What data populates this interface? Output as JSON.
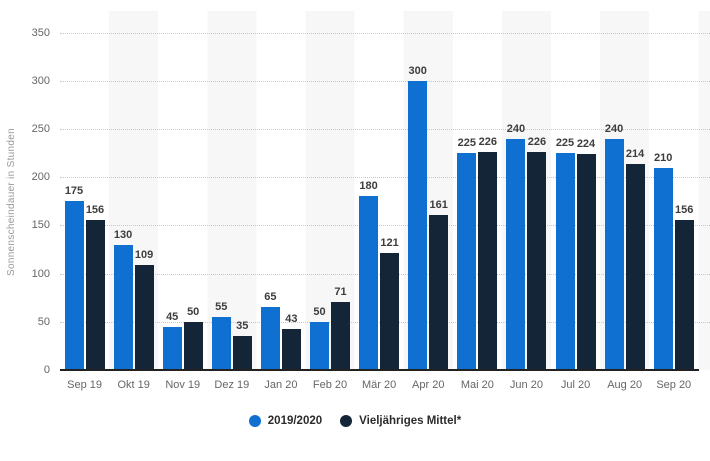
{
  "chart_data": {
    "type": "bar",
    "title": "",
    "xlabel": "",
    "ylabel": "Sonnenscheindauer in Stunden",
    "ylim": [
      0,
      350
    ],
    "yticks": [
      0,
      50,
      100,
      150,
      200,
      250,
      300,
      350
    ],
    "grid": "horizontal-dotted",
    "legend_position": "bottom-center",
    "categories": [
      "Sep 19",
      "Okt 19",
      "Nov 19",
      "Dez 19",
      "Jan 20",
      "Feb 20",
      "Mär 20",
      "Apr 20",
      "Mai 20",
      "Jun 20",
      "Jul 20",
      "Aug 20",
      "Sep 20"
    ],
    "series": [
      {
        "name": "2019/2020",
        "color": "#1070d2",
        "values": [
          175,
          130,
          45,
          55,
          65,
          50,
          180,
          300,
          225,
          240,
          225,
          240,
          210
        ]
      },
      {
        "name": "Vieljähriges Mittel*",
        "color": "#142538",
        "values": [
          156,
          109,
          50,
          35,
          43,
          71,
          121,
          161,
          226,
          226,
          224,
          214,
          156
        ]
      }
    ],
    "colors": {
      "background": "#ffffff",
      "column_band": "#f7f7f7",
      "gridline": "#c9c9c9",
      "axis_line": "#222222",
      "tick_label": "#666666",
      "value_label": "#3d3d3d",
      "legend_text": "#2b2b2b",
      "y_title": "#9a9a9a"
    }
  }
}
